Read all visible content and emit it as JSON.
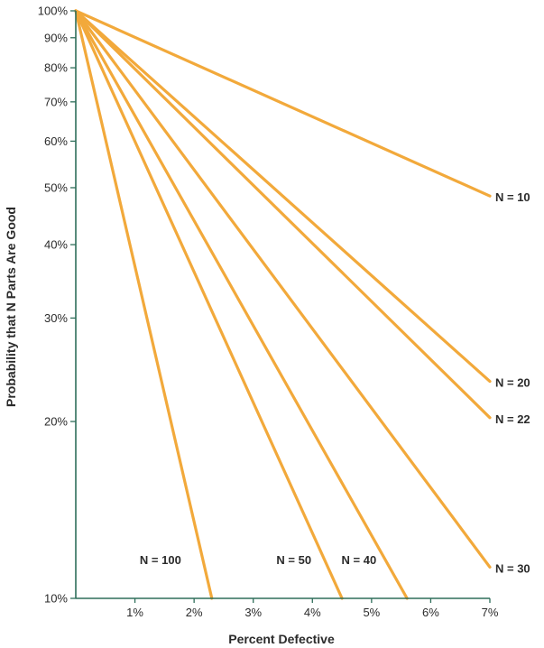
{
  "chart_data": {
    "type": "line",
    "xlabel": "Percent Defective",
    "ylabel": "Probability that N Parts Are Good",
    "x_scale": "linear",
    "y_scale": "log",
    "xlim": [
      0,
      7
    ],
    "ylim": [
      10,
      100
    ],
    "x_ticks": [
      {
        "value": 1,
        "label": "1%"
      },
      {
        "value": 2,
        "label": "2%"
      },
      {
        "value": 3,
        "label": "3%"
      },
      {
        "value": 4,
        "label": "4%"
      },
      {
        "value": 5,
        "label": "5%"
      },
      {
        "value": 6,
        "label": "6%"
      },
      {
        "value": 7,
        "label": "7%"
      }
    ],
    "y_ticks": [
      {
        "value": 100,
        "label": "100%"
      },
      {
        "value": 90,
        "label": "90%"
      },
      {
        "value": 80,
        "label": "80%"
      },
      {
        "value": 70,
        "label": "70%"
      },
      {
        "value": 60,
        "label": "60%"
      },
      {
        "value": 50,
        "label": "50%"
      },
      {
        "value": 40,
        "label": "40%"
      },
      {
        "value": 30,
        "label": "30%"
      },
      {
        "value": 20,
        "label": "20%"
      },
      {
        "value": 10,
        "label": "10%"
      }
    ],
    "grid": false,
    "line_color": "#f2a93b",
    "axis_color": "#2e6e5a",
    "series": [
      {
        "name": "N = 10",
        "x": [
          0,
          7
        ],
        "y": [
          100,
          48.4
        ]
      },
      {
        "name": "N = 20",
        "x": [
          0,
          7
        ],
        "y": [
          100,
          23.4
        ]
      },
      {
        "name": "N = 22",
        "x": [
          0,
          7
        ],
        "y": [
          100,
          20.3
        ]
      },
      {
        "name": "N = 30",
        "x": [
          0,
          7
        ],
        "y": [
          100,
          11.3
        ]
      },
      {
        "name": "N = 40",
        "x": [
          0,
          5.6
        ],
        "y": [
          100,
          10
        ]
      },
      {
        "name": "N = 50",
        "x": [
          0,
          4.5
        ],
        "y": [
          100,
          10
        ]
      },
      {
        "name": "N = 100",
        "x": [
          0,
          2.3
        ],
        "y": [
          100,
          10
        ]
      }
    ]
  }
}
